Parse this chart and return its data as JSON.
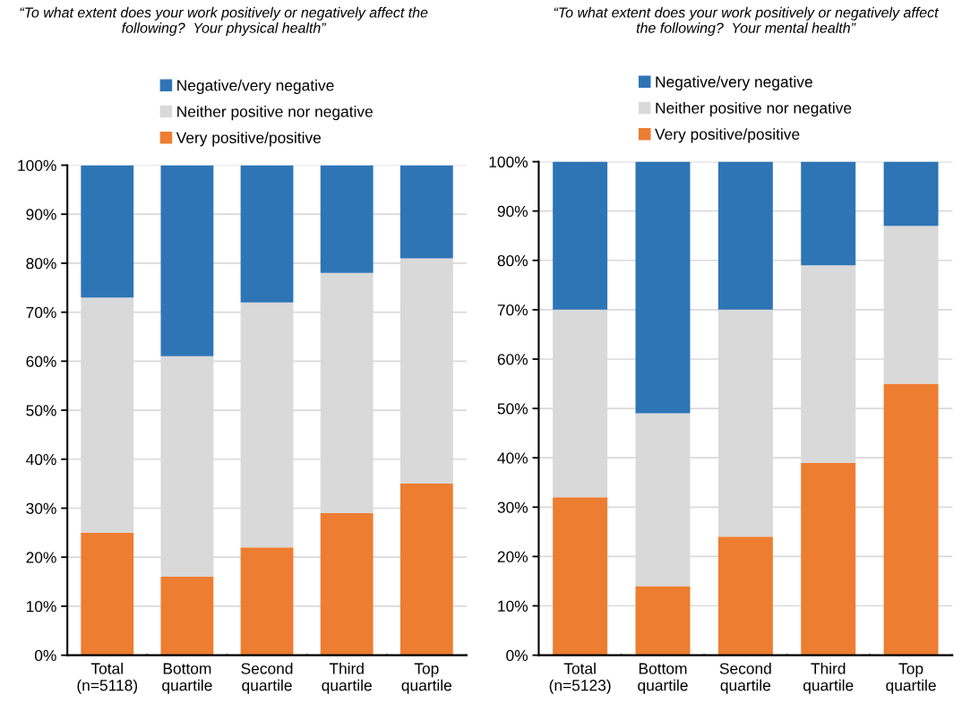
{
  "chart_data": [
    {
      "type": "bar",
      "title": "“To what extent does your work positively or negatively affect the following?  Your physical health”",
      "categories": [
        "Total\n(n=5118)",
        "Bottom\nquartile",
        "Second\nquartile",
        "Third\nquartile",
        "Top\nquartile"
      ],
      "stacked": true,
      "series": [
        {
          "name": "Very positive/positive",
          "color": "#ed7d31",
          "values": [
            25,
            16,
            22,
            29,
            35
          ]
        },
        {
          "name": "Neither positive nor negative",
          "color": "#d9d9d9",
          "values": [
            48,
            45,
            50,
            49,
            46
          ]
        },
        {
          "name": "Negative/very negative",
          "color": "#2e75b6",
          "values": [
            27,
            39,
            28,
            22,
            19
          ]
        }
      ],
      "ylim": [
        0,
        100
      ],
      "yticks": [
        {
          "value": 0,
          "label": "0%"
        },
        {
          "value": 10,
          "label": "10%"
        },
        {
          "value": 20,
          "label": "20%"
        },
        {
          "value": 30,
          "label": "30%"
        },
        {
          "value": 40,
          "label": "40%"
        },
        {
          "value": 50,
          "label": "50%"
        },
        {
          "value": 60,
          "label": "60%"
        },
        {
          "value": 70,
          "label": "70%"
        },
        {
          "value": 80,
          "label": "80%"
        },
        {
          "value": 90,
          "label": "90%"
        },
        {
          "value": 100,
          "label": "100%"
        }
      ],
      "grid": "y",
      "legend": "top"
    },
    {
      "type": "bar",
      "title": "“To what extent does your work positively or negatively affect the following?  Your mental health”",
      "categories": [
        "Total\n(n=5123)",
        "Bottom\nquartile",
        "Second\nquartile",
        "Third\nquartile",
        "Top\nquartile"
      ],
      "stacked": true,
      "series": [
        {
          "name": "Very positive/positive",
          "color": "#ed7d31",
          "values": [
            32,
            14,
            24,
            39,
            55
          ]
        },
        {
          "name": "Neither positive nor negative",
          "color": "#d9d9d9",
          "values": [
            38,
            35,
            46,
            40,
            32
          ]
        },
        {
          "name": "Negative/very negative",
          "color": "#2e75b6",
          "values": [
            30,
            51,
            30,
            21,
            13
          ]
        }
      ],
      "ylim": [
        0,
        100
      ],
      "yticks": [
        {
          "value": 0,
          "label": "0%"
        },
        {
          "value": 10,
          "label": "10%"
        },
        {
          "value": 20,
          "label": "20%"
        },
        {
          "value": 30,
          "label": "30%"
        },
        {
          "value": 40,
          "label": "40%"
        },
        {
          "value": 50,
          "label": "50%"
        },
        {
          "value": 60,
          "label": "60%"
        },
        {
          "value": 70,
          "label": "70%"
        },
        {
          "value": 80,
          "label": "80%"
        },
        {
          "value": 90,
          "label": "90%"
        },
        {
          "value": 100,
          "label": "100%"
        }
      ],
      "grid": "y",
      "legend": "top"
    }
  ]
}
